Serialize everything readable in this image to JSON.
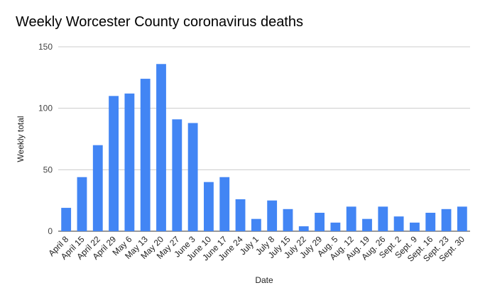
{
  "chart_data": {
    "type": "bar",
    "title": "Weekly Worcester County coronavirus deaths",
    "xlabel": "Date",
    "ylabel": "Weekly total",
    "ylim": [
      0,
      150
    ],
    "yticks": [
      0,
      50,
      100,
      150
    ],
    "grid": true,
    "legend": "none",
    "bar_color": "#4285f4",
    "categories": [
      "April 8",
      "April 15",
      "April 22",
      "April 29",
      "May 6",
      "May 13",
      "May 20",
      "May 27",
      "June 3",
      "June 10",
      "June 17",
      "June 24",
      "July 1",
      "July 8",
      "July 15",
      "July 22",
      "July 29",
      "Aug. 5",
      "Aug. 12",
      "Aug. 19",
      "Aug. 26",
      "Sept. 2",
      "Sept. 9",
      "Sept. 16",
      "Sept. 23",
      "Sept. 30"
    ],
    "values": [
      19,
      44,
      70,
      110,
      112,
      124,
      136,
      91,
      88,
      40,
      44,
      26,
      10,
      25,
      18,
      4,
      15,
      7,
      20,
      10,
      20,
      12,
      7,
      15,
      18,
      20
    ]
  }
}
